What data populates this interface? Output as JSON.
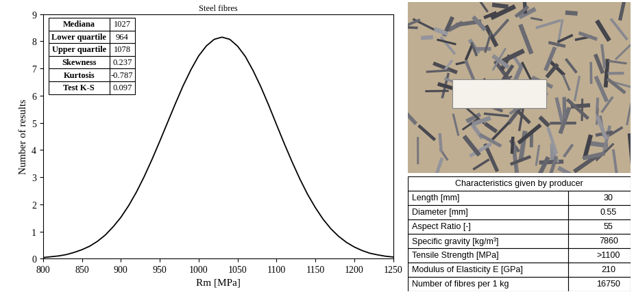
{
  "chart_data": {
    "type": "line",
    "title": "Steel fibres",
    "x_label": "Rm [MPa]",
    "y_label": "Number of results",
    "x": [
      800,
      810,
      820,
      830,
      840,
      850,
      860,
      870,
      880,
      890,
      900,
      910,
      920,
      930,
      940,
      950,
      960,
      970,
      980,
      990,
      1000,
      1010,
      1020,
      1030,
      1040,
      1050,
      1060,
      1070,
      1080,
      1090,
      1100,
      1110,
      1120,
      1130,
      1140,
      1150,
      1160,
      1170,
      1180,
      1190,
      1200,
      1210,
      1220,
      1230,
      1240,
      1250
    ],
    "values": [
      0.04,
      0.07,
      0.1,
      0.15,
      0.23,
      0.33,
      0.46,
      0.64,
      0.87,
      1.17,
      1.52,
      1.95,
      2.45,
      3.02,
      3.65,
      4.32,
      5.01,
      5.7,
      6.36,
      6.95,
      7.46,
      7.83,
      8.07,
      8.15,
      8.07,
      7.82,
      7.44,
      6.92,
      6.32,
      5.65,
      4.94,
      4.24,
      3.57,
      2.94,
      2.37,
      1.88,
      1.45,
      1.1,
      0.82,
      0.6,
      0.43,
      0.3,
      0.2,
      0.14,
      0.09,
      0.06
    ],
    "color": "#000000",
    "xlim": [
      800,
      1250
    ],
    "xticks": [
      800,
      850,
      900,
      950,
      1000,
      1050,
      1100,
      1150,
      1200,
      1250
    ],
    "ylim": [
      0,
      9
    ],
    "yticks": [
      0,
      1,
      2,
      3,
      4,
      5,
      6,
      7,
      8,
      9
    ],
    "grid": false,
    "inset_table": {
      "rows": [
        [
          "Mediana",
          1027
        ],
        [
          "Lower quartile",
          964
        ],
        [
          "Upper quartile",
          1078
        ],
        [
          "Skewness",
          0.237
        ],
        [
          "Kurtosis",
          -0.787
        ],
        [
          "Test K-S",
          0.097
        ]
      ]
    }
  },
  "table": {
    "title": "Characteristics given by producer",
    "rows": [
      [
        "Length [mm]",
        30
      ],
      [
        "Diameter [mm]",
        0.55
      ],
      [
        "Aspect Ratio [-]",
        55
      ],
      [
        "Specific gravity [kg/m³]",
        7860
      ],
      [
        "Tensile Strength [MPa]",
        ">1100"
      ],
      [
        "Modulus of Elasticity E [GPa]",
        210
      ],
      [
        "Number of fibres per 1 kg",
        16750
      ]
    ]
  }
}
